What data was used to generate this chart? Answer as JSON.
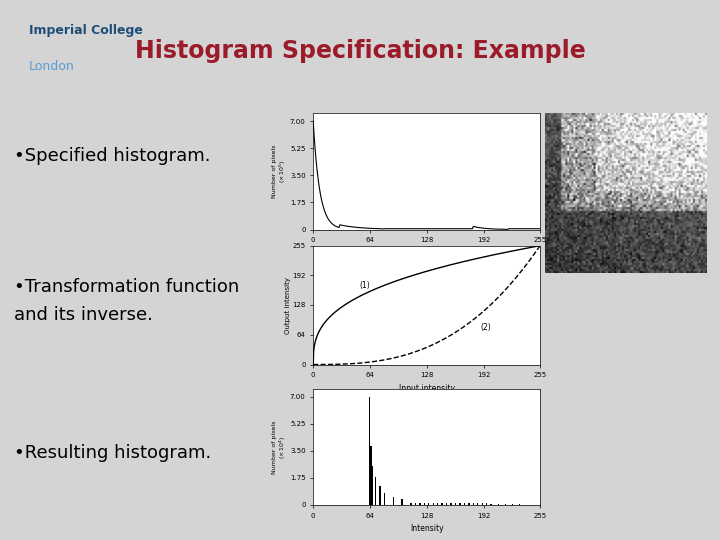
{
  "title": "Histogram Specification: Example",
  "title_color": "#9B1B2A",
  "title_fontsize": 17,
  "title_fontweight": "bold",
  "bg_color": "#D4D4D4",
  "content_bg": "#FFFFFF",
  "logo_text1": "Imperial College",
  "logo_text2": "London",
  "logo_color1": "#1F4E79",
  "logo_color2": "#5B9BD5",
  "bullet1": "•Specified histogram.",
  "bullet2": "•Transformation function\nand its inverse.",
  "bullet3": "•Resulting histogram.",
  "bullet_fontsize": 13,
  "header_line_color": "#5B9BD5"
}
